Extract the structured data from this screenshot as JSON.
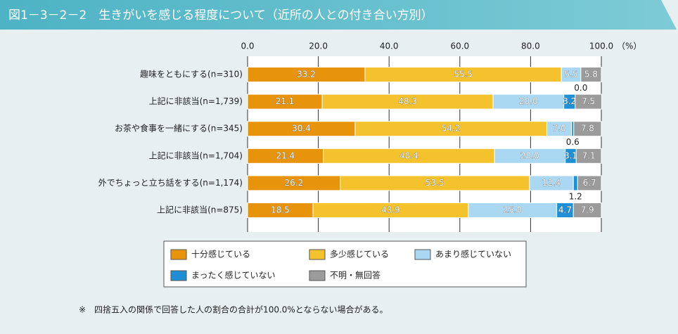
{
  "chart_data": {
    "type": "stacked-bar-horizontal",
    "title": "図1－3－2－2　生きがいを感じる程度について（近所の人との付き合い方別）",
    "xlabel": "（%）",
    "categories": [
      "趣味をともにする(n=310)",
      "上記に非該当(n=1,739)",
      "お茶や食事を一緒にする(n=345)",
      "上記に非該当(n=1,704)",
      "外でちょっと立ち話をする(n=1,174)",
      "上記に非該当(n=875)"
    ],
    "series": [
      {
        "name": "十分感じている",
        "color": "#e8930c",
        "values": [
          33.2,
          21.1,
          30.4,
          21.4,
          26.2,
          18.5
        ],
        "value_labels": [
          "33.2",
          "21.1",
          "30.4",
          "21.4",
          "26.2",
          "18.5"
        ]
      },
      {
        "name": "多少感じている",
        "color": "#f4c22c",
        "values": [
          55.5,
          48.3,
          54.2,
          48.4,
          53.5,
          43.9
        ],
        "value_labels": [
          "55.5",
          "48.3",
          "54.2",
          "48.4",
          "53.5",
          "43.9"
        ]
      },
      {
        "name": "あまり感じていない",
        "color": "#aad8f2",
        "values": [
          5.5,
          20.0,
          7.0,
          20.0,
          12.4,
          25.0
        ],
        "value_labels": [
          "5.5",
          "20.0",
          "7.0",
          "20.0",
          "12.4",
          "25.0"
        ]
      },
      {
        "name": "まったく感じていない",
        "color": "#1f8fd6",
        "values": [
          0.0,
          3.2,
          0.6,
          3.1,
          1.2,
          4.7
        ],
        "value_labels": [
          "0.0",
          "3.2",
          "0.6",
          "3.1",
          "1.2",
          "4.7"
        ]
      },
      {
        "name": "不明・無回答",
        "color": "#9b9b9b",
        "values": [
          5.8,
          7.5,
          7.8,
          7.1,
          6.7,
          7.9
        ],
        "value_labels": [
          "5.8",
          "7.5",
          "7.8",
          "7.1",
          "6.7",
          "7.9"
        ]
      }
    ],
    "xlim": [
      0,
      100
    ],
    "xticks": [
      {
        "value": 0,
        "label": "0.0"
      },
      {
        "value": 20,
        "label": "20.0"
      },
      {
        "value": 40,
        "label": "40.0"
      },
      {
        "value": 60,
        "label": "60.0"
      },
      {
        "value": 80,
        "label": "80.0"
      },
      {
        "value": 100,
        "label": "100.0"
      }
    ],
    "note": "※　四捨五入の関係で回答した人の割合の合計が100.0%とならない場合がある。"
  }
}
